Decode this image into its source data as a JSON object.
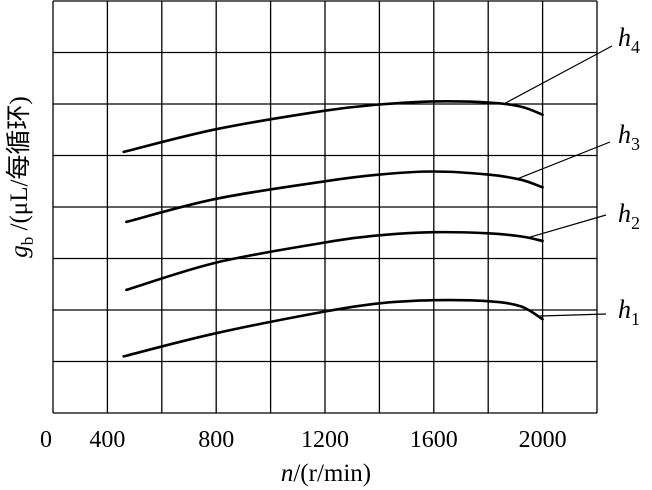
{
  "chart_data": {
    "type": "line",
    "title": "",
    "xlabel": {
      "symbol": "n",
      "unit": "/(r/min)"
    },
    "ylabel": {
      "symbol": "g",
      "subscript": "b",
      "unit": " /(μL/每循环)"
    },
    "xticks": [
      {
        "value": 0,
        "label": "0"
      },
      {
        "value": 400,
        "label": "400"
      },
      {
        "value": 800,
        "label": "800"
      },
      {
        "value": 1200,
        "label": "1200"
      },
      {
        "value": 1600,
        "label": "1600"
      },
      {
        "value": 2000,
        "label": "2000"
      }
    ],
    "xlim": [
      0,
      2200
    ],
    "x_axis_broken": true,
    "ylim": [
      0,
      8
    ],
    "yticks": [],
    "grid": true,
    "series": [
      {
        "label": "h",
        "label_subscript": "1",
        "x": [
          460,
          800,
          1200,
          1400,
          1600,
          1800,
          1920,
          2000
        ],
        "y": [
          1.1,
          1.55,
          1.97,
          2.13,
          2.19,
          2.17,
          2.07,
          1.82
        ]
      },
      {
        "label": "h",
        "label_subscript": "2",
        "x": [
          470,
          800,
          1200,
          1400,
          1600,
          1800,
          1920,
          2000
        ],
        "y": [
          2.39,
          2.92,
          3.31,
          3.45,
          3.51,
          3.49,
          3.43,
          3.34
        ]
      },
      {
        "label": "h",
        "label_subscript": "3",
        "x": [
          470,
          800,
          1200,
          1400,
          1600,
          1800,
          1920,
          2000
        ],
        "y": [
          3.71,
          4.16,
          4.5,
          4.63,
          4.69,
          4.63,
          4.53,
          4.38
        ]
      },
      {
        "label": "h",
        "label_subscript": "4",
        "x": [
          460,
          800,
          1200,
          1400,
          1600,
          1800,
          1920,
          2000
        ],
        "y": [
          5.07,
          5.51,
          5.87,
          5.99,
          6.05,
          6.03,
          5.95,
          5.79
        ]
      }
    ]
  }
}
